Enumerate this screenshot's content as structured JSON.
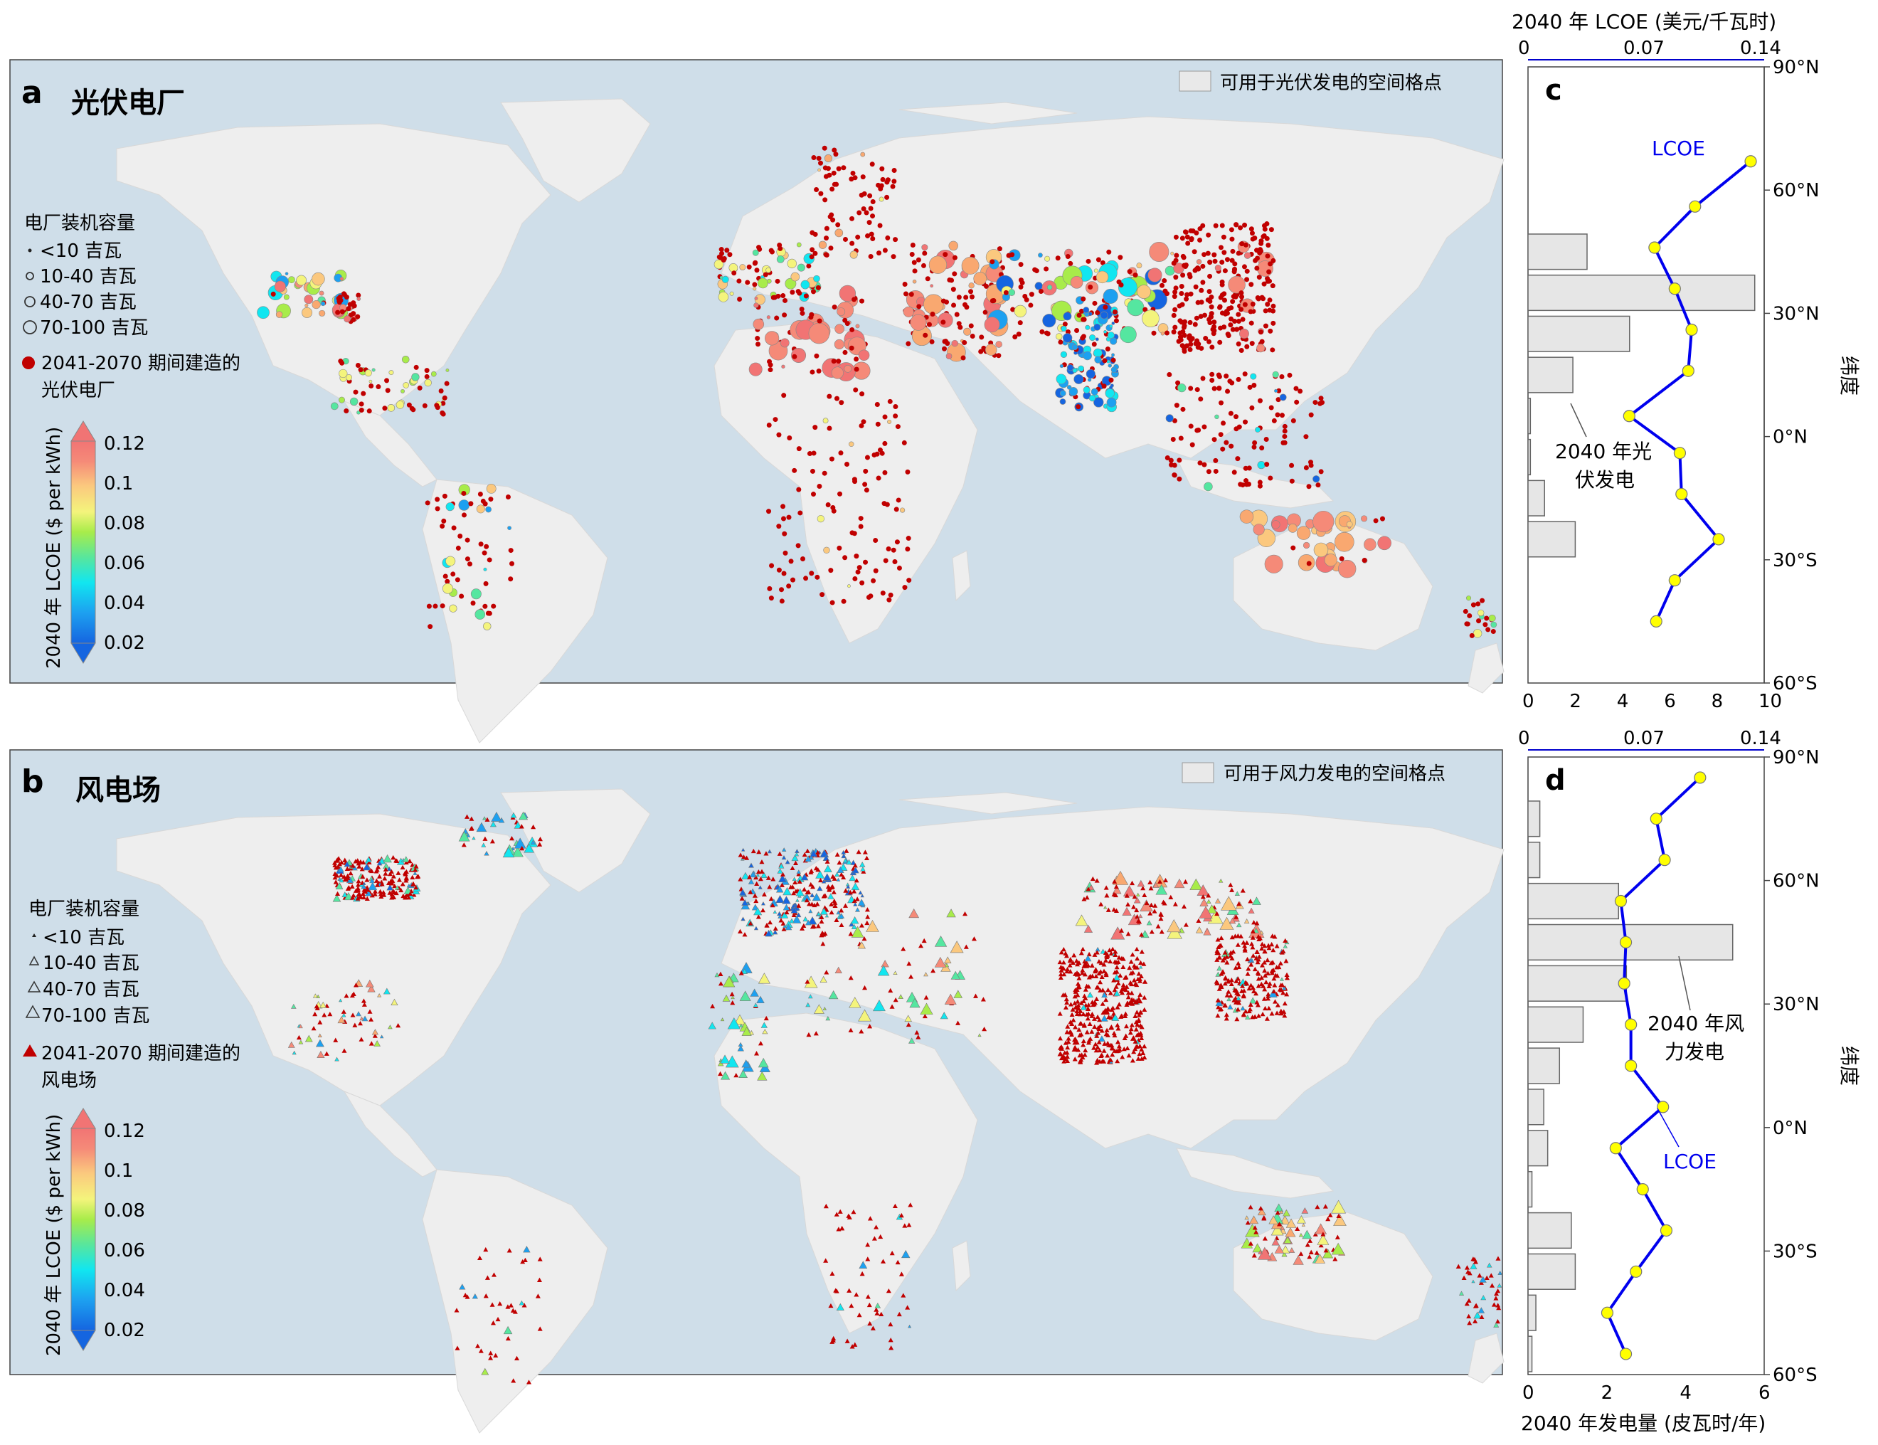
{
  "panel_a": {
    "letter": "a",
    "title": "光伏电厂",
    "grid_legend": "可用于光伏发电的空间格点",
    "capacity_title": "电厂装机容量",
    "capacity_items": [
      "<10 吉瓦",
      "10-40 吉瓦",
      "40-70 吉瓦",
      "70-100 吉瓦"
    ],
    "new_plants_line1": "2041-2070 期间建造的",
    "new_plants_line2": "光伏电厂",
    "colorbar_label": "2040 年 LCOE ($ per kWh)",
    "colorbar_ticks": [
      "0.12",
      "0.1",
      "0.08",
      "0.06",
      "0.04",
      "0.02"
    ]
  },
  "panel_b": {
    "letter": "b",
    "title": "风电场",
    "grid_legend": "可用于风力发电的空间格点",
    "capacity_title": "电厂装机容量",
    "capacity_items": [
      "<10 吉瓦",
      "10-40 吉瓦",
      "40-70 吉瓦",
      "70-100 吉瓦"
    ],
    "new_plants_line1": "2041-2070 期间建造的",
    "new_plants_line2": "风电场",
    "colorbar_label": "2040 年 LCOE ($ per kWh)",
    "colorbar_ticks": [
      "0.12",
      "0.1",
      "0.08",
      "0.06",
      "0.04",
      "0.02"
    ]
  },
  "colors": {
    "ocean": "#cfdee9",
    "land": "#eeeeee",
    "grid_cell": "#dcdcdc",
    "new_plant": "#c00000",
    "lcoe_line": "#0000ee",
    "lcoe_marker": "#ffff00",
    "colorbar": [
      "#1565e0",
      "#1da0f0",
      "#11e6f0",
      "#55e6a0",
      "#a8ec4a",
      "#f4f47c",
      "#fbc87e",
      "#f9a870",
      "#f58a78",
      "#f17474"
    ]
  },
  "panel_c": {
    "letter": "c",
    "top_axis_label": "2040 年 LCOE (美元/千瓦时)",
    "top_ticks": [
      "0",
      "0.07",
      "0.14"
    ],
    "bottom_ticks": [
      "0",
      "2",
      "4",
      "6",
      "8",
      "10"
    ],
    "lat_ticks": [
      "90°N",
      "60°N",
      "30°N",
      "0°N",
      "30°S",
      "60°S"
    ],
    "right_label": "纬度",
    "lcoe_label": "LCOE",
    "gen_label_line1": "2040 年光",
    "gen_label_line2": "伏发电"
  },
  "panel_d": {
    "letter": "d",
    "bottom_axis_label": "2040 年发电量 (皮瓦时/年)",
    "top_ticks": [
      "0",
      "0.07",
      "0.14"
    ],
    "bottom_ticks": [
      "0",
      "2",
      "4",
      "6"
    ],
    "lat_ticks": [
      "90°N",
      "60°N",
      "30°N",
      "0°N",
      "30°S",
      "60°S"
    ],
    "right_label": "纬度",
    "lcoe_label": "LCOE",
    "gen_label_line1": "2040 年风",
    "gen_label_line2": "力发电"
  },
  "chart_data": [
    {
      "type": "bar",
      "panel": "c",
      "orientation": "horizontal",
      "xlabel": "",
      "ylabel": "纬度",
      "ylim": [
        -60,
        90
      ],
      "xlim": [
        0,
        10
      ],
      "latitude_band_centers": [
        85,
        75,
        65,
        55,
        45,
        35,
        25,
        15,
        5,
        -5,
        -15,
        -25,
        -35,
        -45,
        -55
      ],
      "generation_pwh": [
        0,
        0,
        0,
        0,
        2.5,
        9.6,
        4.3,
        1.9,
        0.1,
        0.1,
        0.7,
        2.0,
        0,
        0,
        0
      ],
      "lcoe_points": [
        {
          "lat": 67,
          "lcoe": 0.132
        },
        {
          "lat": 56,
          "lcoe": 0.099
        },
        {
          "lat": 46,
          "lcoe": 0.075
        },
        {
          "lat": 36,
          "lcoe": 0.087
        },
        {
          "lat": 26,
          "lcoe": 0.097
        },
        {
          "lat": 16,
          "lcoe": 0.095
        },
        {
          "lat": 5,
          "lcoe": 0.06
        },
        {
          "lat": -4,
          "lcoe": 0.09
        },
        {
          "lat": -14,
          "lcoe": 0.091
        },
        {
          "lat": -25,
          "lcoe": 0.113
        },
        {
          "lat": -35,
          "lcoe": 0.087
        },
        {
          "lat": -45,
          "lcoe": 0.076
        }
      ],
      "lcoe_xlim": [
        0,
        0.14
      ]
    },
    {
      "type": "bar",
      "panel": "d",
      "orientation": "horizontal",
      "xlabel": "2040 年发电量 (皮瓦时/年)",
      "ylabel": "纬度",
      "ylim": [
        -60,
        90
      ],
      "xlim": [
        0,
        6
      ],
      "latitude_band_centers": [
        85,
        75,
        65,
        55,
        45,
        35,
        25,
        15,
        5,
        -5,
        -15,
        -25,
        -35,
        -45,
        -55
      ],
      "generation_pwh": [
        0,
        0.3,
        0.3,
        2.3,
        5.2,
        2.5,
        1.4,
        0.8,
        0.4,
        0.5,
        0.1,
        1.1,
        1.2,
        0.2,
        0.1
      ],
      "lcoe_points": [
        {
          "lat": 85,
          "lcoe": 0.102
        },
        {
          "lat": 75,
          "lcoe": 0.076
        },
        {
          "lat": 65,
          "lcoe": 0.081
        },
        {
          "lat": 55,
          "lcoe": 0.055
        },
        {
          "lat": 45,
          "lcoe": 0.058
        },
        {
          "lat": 35,
          "lcoe": 0.057
        },
        {
          "lat": 25,
          "lcoe": 0.061
        },
        {
          "lat": 15,
          "lcoe": 0.061
        },
        {
          "lat": 5,
          "lcoe": 0.08
        },
        {
          "lat": -5,
          "lcoe": 0.052
        },
        {
          "lat": -15,
          "lcoe": 0.068
        },
        {
          "lat": -25,
          "lcoe": 0.082
        },
        {
          "lat": -35,
          "lcoe": 0.064
        },
        {
          "lat": -45,
          "lcoe": 0.047
        },
        {
          "lat": -55,
          "lcoe": 0.058
        }
      ],
      "lcoe_xlim": [
        0,
        0.14
      ]
    }
  ]
}
